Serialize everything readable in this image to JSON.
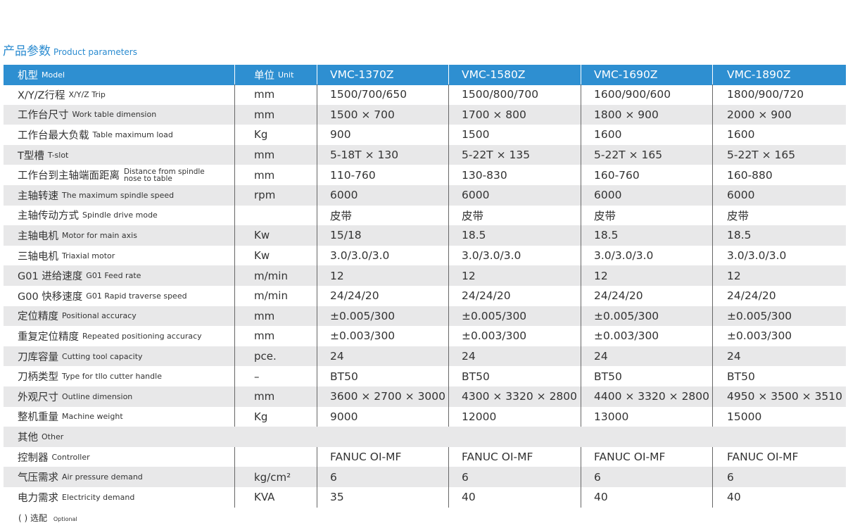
{
  "header": {
    "title": "产品参数",
    "subtitle": "Product parameters"
  },
  "table": {
    "columns": [
      {
        "zh": "机型",
        "en": "Model"
      },
      {
        "zh": "单位",
        "en": "Unit"
      },
      "VMC-1370Z",
      "VMC-1580Z",
      "VMC-1690Z",
      "VMC-1890Z"
    ],
    "rows": [
      {
        "zh": "X/Y/Z行程",
        "en": "X/Y/Z Trip",
        "unit": "mm",
        "values": [
          "1500/700/650",
          "1500/800/700",
          "1600/900/600",
          "1800/900/720"
        ]
      },
      {
        "zh": "工作台尺寸",
        "en": "Work table dimension",
        "unit": "mm",
        "values": [
          "1500 × 700",
          "1700 × 800",
          "1800 × 900",
          "2000 × 900"
        ]
      },
      {
        "zh": "工作台最大负载",
        "en": "Table maximum load",
        "unit": "Kg",
        "values": [
          "900",
          "1500",
          "1600",
          "1600"
        ]
      },
      {
        "zh": "T型槽",
        "en": "T-slot",
        "unit": "mm",
        "values": [
          "5-18T × 130",
          "5-22T × 135",
          "5-22T × 165",
          "5-22T × 165"
        ]
      },
      {
        "zh": "工作台到主轴端面距离",
        "en": "Distance from spindle nose to table",
        "unit": "mm",
        "values": [
          "110-760",
          "130-830",
          "160-760",
          "160-880"
        ]
      },
      {
        "zh": "主轴转速",
        "en": "The maximum spindle speed",
        "unit": "rpm",
        "values": [
          "6000",
          "6000",
          "6000",
          "6000"
        ]
      },
      {
        "zh": "主轴传动方式",
        "en": "Spindle drive mode",
        "values": [
          "皮带",
          "皮带",
          "皮带",
          "皮带"
        ]
      },
      {
        "zh": "主轴电机",
        "en": "Motor for main axis",
        "unit": "Kw",
        "values": [
          "15/18",
          "18.5",
          "18.5",
          "18.5"
        ]
      },
      {
        "zh": "三轴电机",
        "en": "Triaxial motor",
        "unit": "Kw",
        "values": [
          "3.0/3.0/3.0",
          "3.0/3.0/3.0",
          "3.0/3.0/3.0",
          "3.0/3.0/3.0"
        ]
      },
      {
        "zh": "G01 进给速度",
        "en": "G01 Feed rate",
        "unit": "m/min",
        "values": [
          "12",
          "12",
          "12",
          "12"
        ]
      },
      {
        "zh": "G00 快移速度",
        "en": "G01 Rapid traverse speed",
        "unit": "m/min",
        "values": [
          "24/24/20",
          "24/24/20",
          "24/24/20",
          "24/24/20"
        ]
      },
      {
        "zh": "定位精度",
        "en": "Positional accuracy",
        "unit": "mm",
        "values": [
          "±0.005/300",
          "±0.005/300",
          "±0.005/300",
          "±0.005/300"
        ]
      },
      {
        "zh": "重复定位精度",
        "en": "Repeated positioning accuracy",
        "unit": "mm",
        "values": [
          "±0.003/300",
          "±0.003/300",
          "±0.003/300",
          "±0.003/300"
        ]
      },
      {
        "zh": "刀库容量",
        "en": "Cutting tool capacity",
        "unit": "pce.",
        "values": [
          "24",
          "24",
          "24",
          "24"
        ]
      },
      {
        "zh": "刀柄类型",
        "en": "Type for tllo cutter handle",
        "unit": "–",
        "values": [
          "BT50",
          "BT50",
          "BT50",
          "BT50"
        ]
      },
      {
        "zh": "外观尺寸",
        "en": "Outline dimension",
        "unit": "mm",
        "values": [
          "3600 × 2700 × 3000",
          "4300 × 3320 × 2800",
          "4400 × 3320 × 2800",
          "4950 × 3500 × 3510"
        ]
      },
      {
        "zh": "整机重量",
        "en": "Machine weight",
        "unit": "Kg",
        "values": [
          "9000",
          "12000",
          "13000",
          "15000"
        ]
      },
      {
        "zh": "其他",
        "en": "Other"
      },
      {
        "zh": "控制器",
        "en": "Controller",
        "values": [
          "FANUC OI-MF",
          "FANUC OI-MF",
          "FANUC OI-MF",
          "FANUC OI-MF"
        ]
      },
      {
        "zh": "气压需求",
        "en": "Air pressure demand",
        "unit": "kg/cm²",
        "values": [
          "6",
          "6",
          "6",
          "6"
        ]
      },
      {
        "zh": "电力需求",
        "en": "Electricity demand",
        "unit": "KVA",
        "values": [
          "35",
          "40",
          "40",
          "40"
        ]
      }
    ]
  },
  "footer": {
    "zh": "( ) 选配",
    "en": "Optional"
  }
}
